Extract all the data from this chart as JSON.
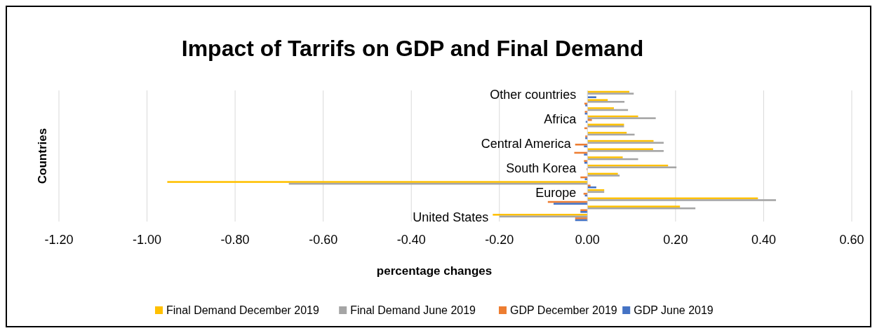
{
  "chart_data": {
    "type": "bar",
    "orientation": "horizontal",
    "title": "Impact of Tarrifs on GDP and Final Demand",
    "xlabel": "percentage changes",
    "ylabel": "Countries",
    "categories": [
      "Other countries",
      null,
      null,
      "Africa",
      null,
      null,
      "Central America",
      null,
      null,
      "South Korea",
      null,
      null,
      "Europe",
      null,
      null,
      "United States"
    ],
    "series": [
      {
        "name": "Final Demand December  2019",
        "color": "#ffc000",
        "values": [
          0.095,
          0.046,
          0.06,
          0.115,
          0.083,
          0.089,
          0.15,
          0.149,
          0.08,
          0.183,
          0.069,
          -0.954,
          0.038,
          0.387,
          0.21,
          -0.215
        ]
      },
      {
        "name": "Final Demand June  2019",
        "color": "#a5a5a5",
        "values": [
          0.105,
          0.084,
          0.092,
          0.155,
          0.083,
          0.107,
          0.173,
          0.173,
          0.115,
          0.202,
          0.073,
          -0.678,
          0.038,
          0.428,
          0.245,
          -0.2
        ]
      },
      {
        "name": "GDP December 2019",
        "color": "#ed7d31",
        "values": [
          0,
          -0.007,
          -0.006,
          0.01,
          -0.007,
          -0.005,
          -0.028,
          -0.03,
          -0.008,
          -0.002,
          -0.016,
          0.007,
          -0.009,
          -0.09,
          -0.016,
          -0.028
        ]
      },
      {
        "name": "GDP June 2019",
        "color": "#4472c4",
        "values": [
          0.02,
          -0.005,
          -0.006,
          -0.004,
          0,
          -0.005,
          -0.008,
          -0.008,
          -0.007,
          0,
          -0.006,
          0.02,
          -0.006,
          -0.077,
          -0.016,
          -0.028
        ]
      }
    ],
    "xlim": [
      -1.2,
      0.6
    ],
    "xticks": [
      {
        "value": -1.2,
        "label": "-1.20"
      },
      {
        "value": -1,
        "label": "-1.00"
      },
      {
        "value": -0.8,
        "label": "-0.80"
      },
      {
        "value": -0.6,
        "label": "-0.60"
      },
      {
        "value": -0.4,
        "label": "-0.40"
      },
      {
        "value": -0.2,
        "label": "-0.20"
      },
      {
        "value": 0,
        "label": "0.00"
      },
      {
        "value": 0.2,
        "label": "0.20"
      },
      {
        "value": 0.4,
        "label": "0.40"
      },
      {
        "value": 0.6,
        "label": "0.60"
      }
    ],
    "grid": "x",
    "legend": "bottom"
  }
}
